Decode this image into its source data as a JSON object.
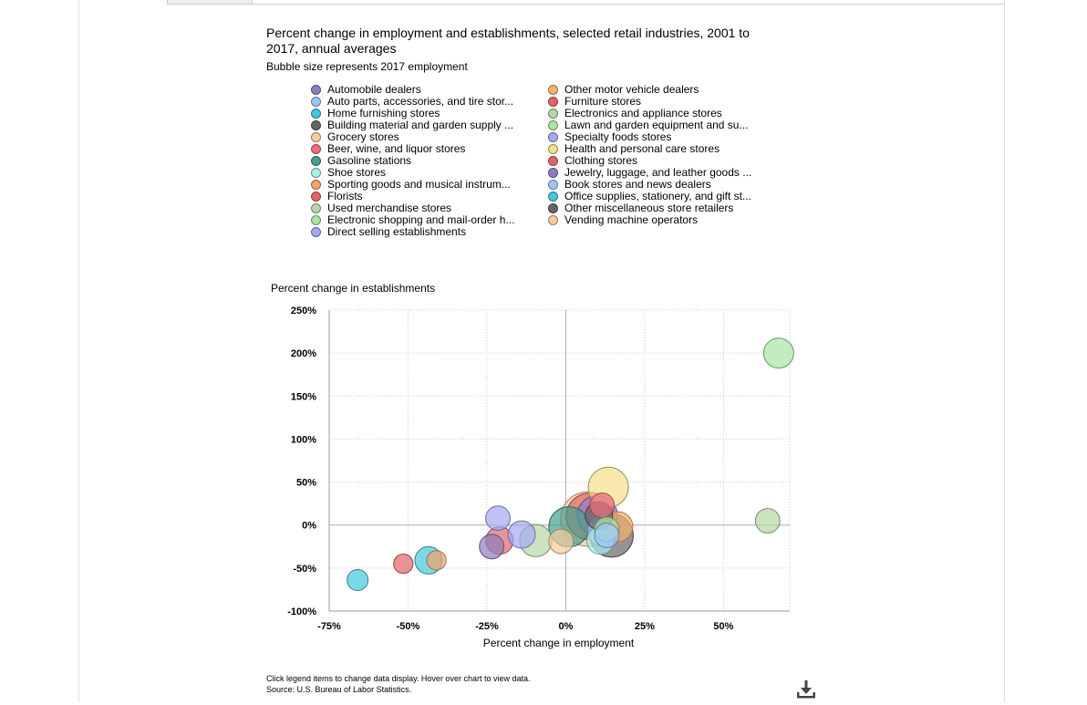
{
  "chart_data": {
    "type": "scatter",
    "title": "Percent change in employment and establishments, selected retail industries, 2001 to 2017, annual averages",
    "subtitle": "Bubble size represents 2017 employment",
    "xlabel": "Percent change in employment",
    "ylabel": "Percent change in establishments",
    "xlim": [
      -75,
      71
    ],
    "ylim": [
      -100,
      250
    ],
    "xticks": [
      -75,
      -50,
      -25,
      0,
      25,
      50
    ],
    "yticks": [
      -100,
      -50,
      0,
      50,
      100,
      150,
      200,
      250
    ],
    "xtick_labels": [
      "-75%",
      "-50%",
      "-25%",
      "0%",
      "25%",
      "50%"
    ],
    "ytick_labels": [
      "-100%",
      "-50%",
      "0%",
      "50%",
      "100%",
      "150%",
      "200%",
      "250%"
    ],
    "grid": true,
    "legend_position": "top",
    "series": [
      {
        "name": "Automobile dealers",
        "color": "#8e7cc3",
        "x": 10,
        "y": 11,
        "size": 5
      },
      {
        "name": "Auto parts, accessories, and tire stor...",
        "color": "#9fc5f8",
        "x": 12,
        "y": -6,
        "size": 3
      },
      {
        "name": "Home furnishing stores",
        "color": "#45c7dd",
        "x": -66,
        "y": -64,
        "size": 1
      },
      {
        "name": "Building material and garden supply ...",
        "color": "#666666",
        "x": 14.5,
        "y": -12,
        "size": 6
      },
      {
        "name": "Grocery stores",
        "color": "#f9cb9c",
        "x": 7,
        "y": 7,
        "size": 10
      },
      {
        "name": "Beer, wine, and liquor stores",
        "color": "#f06c7c",
        "x": 11.5,
        "y": 23,
        "size": 1.5
      },
      {
        "name": "Gasoline stations",
        "color": "#45a08e",
        "x": 1,
        "y": -2,
        "size": 5
      },
      {
        "name": "Shoe stores",
        "color": "#a7f0ec",
        "x": 11,
        "y": -18,
        "size": 2
      },
      {
        "name": "Sporting goods and musical instrum...",
        "color": "#f6a26b",
        "x": -41,
        "y": -41,
        "size": 0.8
      },
      {
        "name": "Florists",
        "color": "#e06666",
        "x": -51.5,
        "y": -45,
        "size": 0.8
      },
      {
        "name": "Used merchandise stores",
        "color": "#b6d7a8",
        "x": -9.5,
        "y": -18,
        "size": 3
      },
      {
        "name": "Electronic shopping and mail-order h...",
        "color": "#a8e6a3",
        "x": 67.5,
        "y": 200,
        "size": 2.5
      },
      {
        "name": "Direct selling establishments",
        "color": "#a4a8f3",
        "x": -21.5,
        "y": 8,
        "size": 1.5
      },
      {
        "name": "Other motor vehicle dealers",
        "color": "#f6b26b",
        "x": 16.5,
        "y": -2,
        "size": 2.5
      },
      {
        "name": "Furniture stores",
        "color": "#e06666",
        "x": -21,
        "y": -18,
        "size": 2
      },
      {
        "name": "Electronics and appliance stores",
        "color": "#b6d7a8",
        "x": 64,
        "y": 5,
        "size": 1.5
      },
      {
        "name": "Lawn and garden equipment and su...",
        "color": "#a8e6a3",
        "x": 13,
        "y": -5,
        "size": 1.5
      },
      {
        "name": "Specialty foods stores",
        "color": "#a4a8f3",
        "x": -14,
        "y": -11,
        "size": 2
      },
      {
        "name": "Health and personal care stores",
        "color": "#f3e08a",
        "x": 13.5,
        "y": 44,
        "size": 5
      },
      {
        "name": "Clothing stores",
        "color": "#e06666",
        "x": 7.5,
        "y": 10,
        "size": 7
      },
      {
        "name": "Jewelry, luggage, and leather goods ...",
        "color": "#8e7cc3",
        "x": -23.5,
        "y": -25,
        "size": 1.5
      },
      {
        "name": "Book stores and news dealers",
        "color": "#9fc5f8",
        "x": 13,
        "y": -12,
        "size": 1.5
      },
      {
        "name": "Office supplies, stationery, and gift st...",
        "color": "#45c7dd",
        "x": -43.5,
        "y": -41,
        "size": 2
      },
      {
        "name": "Other miscellaneous store retailers",
        "color": "#666666",
        "x": 10.5,
        "y": 11,
        "size": 2
      },
      {
        "name": "Vending machine operators",
        "color": "#f9cb9c",
        "x": -1.5,
        "y": -19,
        "size": 1.5
      }
    ]
  },
  "notes": {
    "instructions": "Click legend items to change data display. Hover over chart to view data.",
    "source": "Source: U.S. Bureau of Labor Statistics."
  },
  "icons": {
    "download": "download-icon"
  }
}
